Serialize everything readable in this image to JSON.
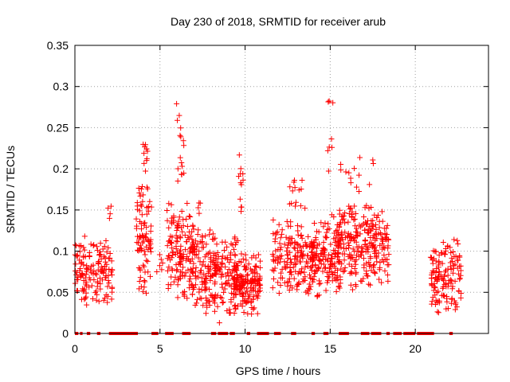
{
  "chart_data": {
    "type": "scatter",
    "title": "Day 230 of 2018, SRMTID for receiver arub",
    "xlabel": "GPS time / hours",
    "ylabel": "SRMTID / TECUs",
    "xlim": [
      0,
      24.3
    ],
    "ylim": [
      0,
      0.35
    ],
    "xticks": [
      0,
      5,
      10,
      15,
      20
    ],
    "xtick_labels": [
      "0",
      "5",
      "10",
      "15",
      "20"
    ],
    "yticks": [
      0,
      0.05,
      0.1,
      0.15,
      0.2,
      0.25,
      0.3,
      0.35
    ],
    "ytick_labels": [
      "0",
      "0.05",
      "0.1",
      "0.15",
      "0.2",
      "0.25",
      "0.3",
      "0.35"
    ],
    "grid": true,
    "marker": "plus",
    "color": "#ff0000",
    "clusters": [
      {
        "x0": 0.0,
        "x1": 2.2,
        "ymin": 0.03,
        "ymax": 0.12,
        "n": 150,
        "seed": 1
      },
      {
        "x0": 1.9,
        "x1": 2.2,
        "ymin": 0.12,
        "ymax": 0.165,
        "n": 4,
        "seed": 2
      },
      {
        "x0": 3.6,
        "x1": 4.5,
        "ymin": 0.04,
        "ymax": 0.2,
        "n": 90,
        "seed": 3
      },
      {
        "x0": 4.0,
        "x1": 4.3,
        "ymin": 0.2,
        "ymax": 0.248,
        "n": 10,
        "seed": 4
      },
      {
        "x0": 4.8,
        "x1": 5.2,
        "ymin": 0.06,
        "ymax": 0.1,
        "n": 6,
        "seed": 5
      },
      {
        "x0": 5.4,
        "x1": 7.0,
        "ymin": 0.03,
        "ymax": 0.17,
        "n": 150,
        "seed": 6
      },
      {
        "x0": 5.9,
        "x1": 6.4,
        "ymin": 0.17,
        "ymax": 0.305,
        "n": 16,
        "seed": 7
      },
      {
        "x0": 6.9,
        "x1": 8.3,
        "ymin": 0.02,
        "ymax": 0.13,
        "n": 130,
        "seed": 8
      },
      {
        "x0": 7.2,
        "x1": 7.4,
        "ymin": 0.13,
        "ymax": 0.17,
        "n": 4,
        "seed": 9
      },
      {
        "x0": 8.2,
        "x1": 9.6,
        "ymin": 0.01,
        "ymax": 0.13,
        "n": 110,
        "seed": 10
      },
      {
        "x0": 9.3,
        "x1": 10.9,
        "ymin": 0.02,
        "ymax": 0.1,
        "n": 160,
        "seed": 11
      },
      {
        "x0": 9.6,
        "x1": 9.9,
        "ymin": 0.13,
        "ymax": 0.22,
        "n": 12,
        "seed": 12
      },
      {
        "x0": 11.6,
        "x1": 12.2,
        "ymin": 0.04,
        "ymax": 0.14,
        "n": 40,
        "seed": 13
      },
      {
        "x0": 12.3,
        "x1": 14.0,
        "ymin": 0.04,
        "ymax": 0.14,
        "n": 130,
        "seed": 14
      },
      {
        "x0": 12.6,
        "x1": 13.6,
        "ymin": 0.14,
        "ymax": 0.21,
        "n": 14,
        "seed": 15
      },
      {
        "x0": 13.8,
        "x1": 15.6,
        "ymin": 0.04,
        "ymax": 0.15,
        "n": 150,
        "seed": 16
      },
      {
        "x0": 14.8,
        "x1": 15.2,
        "ymin": 0.16,
        "ymax": 0.3,
        "n": 8,
        "seed": 17
      },
      {
        "x0": 15.4,
        "x1": 18.5,
        "ymin": 0.05,
        "ymax": 0.16,
        "n": 260,
        "seed": 18
      },
      {
        "x0": 15.6,
        "x1": 17.6,
        "ymin": 0.16,
        "ymax": 0.235,
        "n": 14,
        "seed": 19
      },
      {
        "x0": 20.9,
        "x1": 22.7,
        "ymin": 0.02,
        "ymax": 0.12,
        "n": 140,
        "seed": 20
      }
    ],
    "zero_segments": [
      [
        0.0,
        0.2
      ],
      [
        0.3,
        0.45
      ],
      [
        0.7,
        0.9
      ],
      [
        1.3,
        1.5
      ],
      [
        2.0,
        3.7
      ],
      [
        4.5,
        4.9
      ],
      [
        5.3,
        5.8
      ],
      [
        6.3,
        6.8
      ],
      [
        8.0,
        8.3
      ],
      [
        8.4,
        9.0
      ],
      [
        9.1,
        9.4
      ],
      [
        10.1,
        10.3
      ],
      [
        10.7,
        11.4
      ],
      [
        11.7,
        12.1
      ],
      [
        12.7,
        13.0
      ],
      [
        13.9,
        14.1
      ],
      [
        14.6,
        14.9
      ],
      [
        15.5,
        16.1
      ],
      [
        16.8,
        17.3
      ],
      [
        17.4,
        18.0
      ],
      [
        18.3,
        18.5
      ],
      [
        18.7,
        19.2
      ],
      [
        19.3,
        20.0
      ],
      [
        20.1,
        21.1
      ],
      [
        22.0,
        22.2
      ]
    ]
  }
}
